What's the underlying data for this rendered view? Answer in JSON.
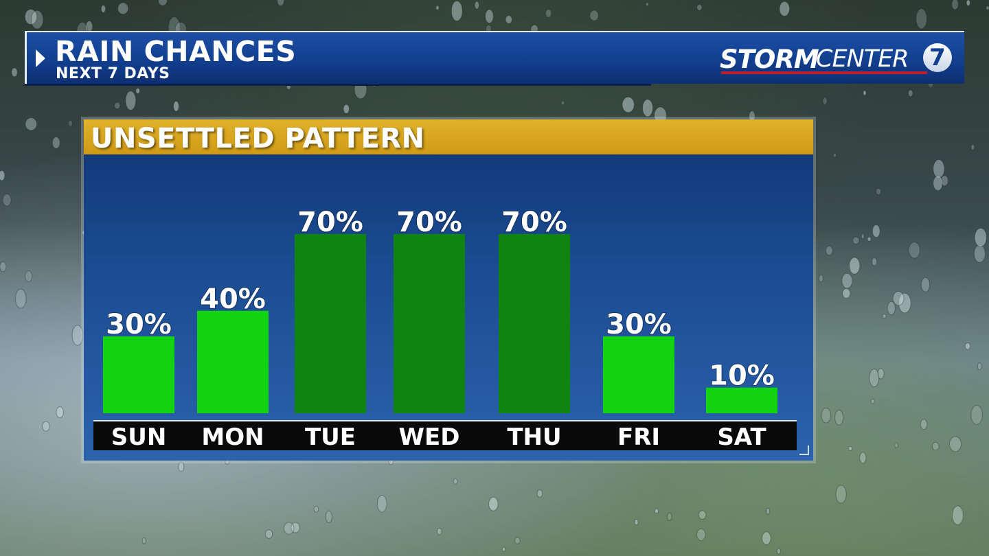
{
  "header": {
    "title": "RAIN CHANCES",
    "subtitle": "NEXT 7 DAYS"
  },
  "logo": {
    "storm": "STORM",
    "center": "CENTER",
    "channel": "7"
  },
  "panel": {
    "banner": "UNSETTLED PATTERN"
  },
  "colors": {
    "bar_low": "#12d412",
    "bar_high": "#108410",
    "banner": "#d9a61e",
    "header": "#123f8f"
  },
  "chart_data": {
    "type": "bar",
    "categories": [
      "SUN",
      "MON",
      "TUE",
      "WED",
      "THU",
      "FRI",
      "SAT"
    ],
    "values": [
      30,
      40,
      70,
      70,
      70,
      30,
      10
    ],
    "labels": [
      "30%",
      "40%",
      "70%",
      "70%",
      "70%",
      "30%",
      "10%"
    ],
    "ylim": [
      0,
      100
    ],
    "unit": "%",
    "grid": false,
    "title": "UNSETTLED PATTERN"
  }
}
